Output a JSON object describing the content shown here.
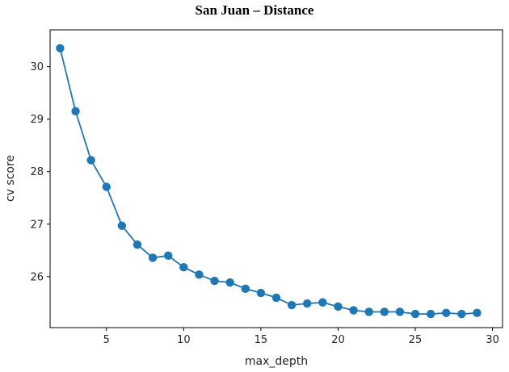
{
  "chart_data": {
    "type": "line",
    "title": "San Juan – Distance",
    "xlabel": "max_depth",
    "ylabel": "cv score",
    "xlim": [
      1.35,
      30.65
    ],
    "ylim": [
      25.03,
      30.7
    ],
    "xticks": [
      5,
      10,
      15,
      20,
      25,
      30
    ],
    "yticks": [
      26,
      27,
      28,
      29,
      30
    ],
    "grid": false,
    "color": "#1f77b4",
    "series": [
      {
        "marker": "circle",
        "x": [
          2,
          3,
          4,
          5,
          6,
          7,
          8,
          9,
          10,
          11,
          12,
          13,
          14,
          15,
          16,
          17,
          18,
          19,
          20,
          21,
          22,
          23,
          24,
          25,
          26,
          27,
          28,
          29
        ],
        "y": [
          30.35,
          29.15,
          28.22,
          27.71,
          26.97,
          26.61,
          26.36,
          26.4,
          26.18,
          26.04,
          25.92,
          25.89,
          25.77,
          25.69,
          25.6,
          25.46,
          25.49,
          25.51,
          25.43,
          25.36,
          25.33,
          25.33,
          25.33,
          25.29,
          25.29,
          25.31,
          25.29,
          25.31
        ]
      }
    ]
  }
}
